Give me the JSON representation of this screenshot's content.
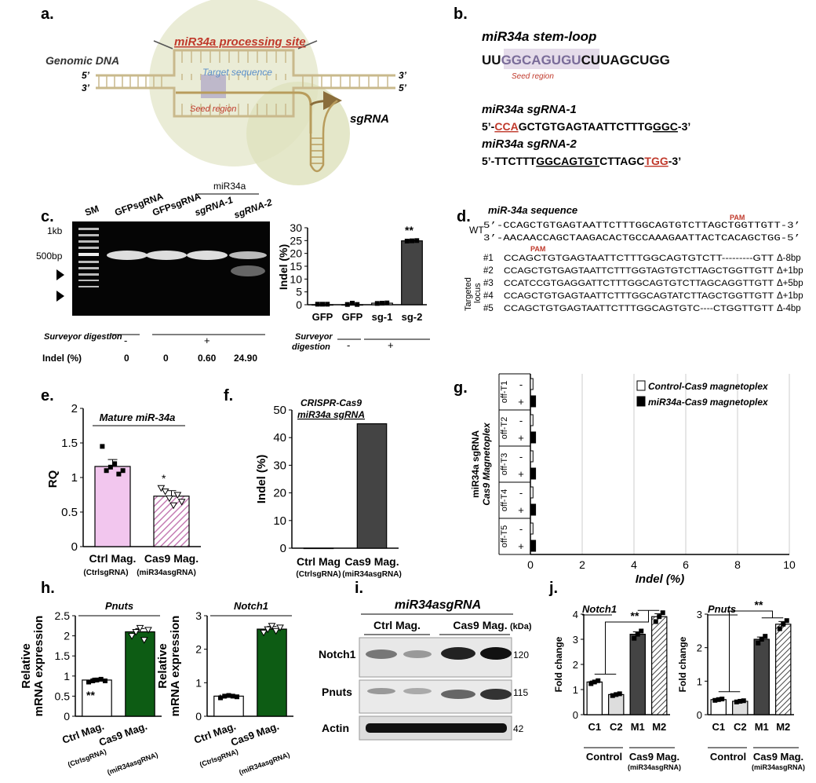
{
  "panels": {
    "a": "a.",
    "b": "b.",
    "c": "c.",
    "d": "d.",
    "e": "e.",
    "f": "f.",
    "g": "g.",
    "h": "h.",
    "i": "i.",
    "j": "j."
  },
  "panel_a": {
    "processing_site": "miR34a processing site",
    "genomic_dna": "Genomic DNA",
    "target_sequence": "Target sequence",
    "seed_region": "Seed region",
    "sgrna": "sgRNA",
    "p5_left": "5’",
    "p3_left": "3’",
    "p3_right": "3’",
    "p5_right": "5’"
  },
  "panel_b": {
    "stem_loop_title": "miR34a stem-loop",
    "seq_prefix": "UU",
    "seq_seed": "GGCAGUGU",
    "seq_suffix": "CUUAGCUGG",
    "seed_label": "Seed region",
    "sg1_title": "miR34a sgRNA-1",
    "sg1_p1": "5’-",
    "sg1_pam": "CCA",
    "sg1_mid": "GCTGTGAGTAATTCTTTG",
    "sg1_u": "GGC",
    "sg1_end": "-3’",
    "sg2_title": "miR34a sgRNA-2",
    "sg2_p1": "5’-TTCTTT",
    "sg2_u": "GGCAGTGT",
    "sg2_mid": "CTTAGC",
    "sg2_pam": "TGG",
    "sg2_end": "-3’"
  },
  "panel_c": {
    "gel_lanes": [
      "SM",
      "GFPsgRNA",
      "GFPsgRNA",
      "sgRNA-1",
      "sgRNA-2"
    ],
    "group_label": "miR34a",
    "markers": [
      "1kb",
      "500bp"
    ],
    "surveyor_label": "Surveyor digestion",
    "surveyor_values": [
      "-",
      "+"
    ],
    "indel_label": "Indel (%)",
    "indel_values": [
      "0",
      "0",
      "0.60",
      "24.90"
    ],
    "bar_surveyor_label_1": "Surveyor",
    "bar_surveyor_label_2": "digestion",
    "bar_surveyor_values": [
      "-",
      "+"
    ],
    "sig": "**"
  },
  "panel_d": {
    "title": "miR-34a sequence",
    "pam": "PAM",
    "wt": "WT",
    "wt_top": "5’-CCAGCTGTGAGTAATTCTTTGGCAGTGTCTTAGCTGGTTGTT-3’",
    "wt_bottom": "3’-AACAACCAGCTAAGACACTGCCAAAGAATTACTCACAGCTGG-5’",
    "side_label_1": "Targeted",
    "side_label_2": "locus",
    "rows": [
      {
        "id": "#1",
        "seq": "CCAGCTGTGAGTAATTCTTTGGCAGTGTCTT---------GTT",
        "delta": "Δ-8bp"
      },
      {
        "id": "#2",
        "seq": "CCAGCTGTGAGTAATTCTTTGGTAGTGTCTTAGCTGGTTGTT",
        "delta": "Δ+1bp"
      },
      {
        "id": "#3",
        "seq": "CCATCCGTGAGGATTCTTTGGCAGTGTCTTAGCAGGTTGTT",
        "delta": "Δ+5bp"
      },
      {
        "id": "#4",
        "seq": "CCAGCTGTGAGTAATTCTTTGGCAGTATCTTAGCTGGTTGTT",
        "delta": "Δ+1bp"
      },
      {
        "id": "#5",
        "seq": "CCAGCTGTGAGTAATTCTTTGGCAGTGTC----CTGGTTGTT",
        "delta": "Δ-4bp"
      }
    ]
  },
  "panel_e_labels": {
    "sub1": "(CtrlsgRNA)",
    "sub2": "(miR34asgRNA)",
    "sig": "*"
  },
  "panel_f_labels": {
    "title1": "CRISPR-Cas9",
    "title2": "miR34a sgRNA",
    "sub1": "(CtrlsgRNA)",
    "sub2": "(miR34asgRNA)"
  },
  "panel_g_labels": {
    "ylabel1": "miR34a sgRNA",
    "ylabel2": "Cas9 Magnetoplex",
    "signs": [
      "-",
      "+"
    ]
  },
  "panel_h_labels": {
    "ylabel1": "Relative",
    "ylabel2": "mRNA expression",
    "sig": "**",
    "sub1": "(CtrlsgRNA)",
    "sub2": "(miR34asgRNA)"
  },
  "panel_i": {
    "title": "miR34asgRNA",
    "groups": [
      "Ctrl Mag.",
      "Cas9 Mag."
    ],
    "kda": "(kDa)",
    "proteins": [
      {
        "name": "Notch1",
        "size": "120"
      },
      {
        "name": "Pnuts",
        "size": "115"
      },
      {
        "name": "Actin",
        "size": "42"
      }
    ]
  },
  "panel_j_labels": {
    "ylabel": "Fold change",
    "sig": "**",
    "control": "Control",
    "cas9": "Cas9 Mag.",
    "sub": "(miR34asgRNA)"
  },
  "chart_data": [
    {
      "id": "c-bar",
      "type": "bar",
      "categories": [
        "GFP",
        "GFP",
        "sg-1",
        "sg-2"
      ],
      "values": [
        0,
        0,
        0.6,
        24.9
      ],
      "ylabel": "Indel (%)",
      "ylim": [
        0,
        30
      ],
      "yticks": [
        0,
        5,
        10,
        15,
        20,
        25,
        30
      ]
    },
    {
      "id": "e",
      "type": "bar",
      "title": "Mature miR-34a",
      "categories": [
        "Ctrl Mag.",
        "Cas9 Mag."
      ],
      "values": [
        1.16,
        0.73
      ],
      "ylabel": "RQ",
      "ylim": [
        0,
        2
      ],
      "yticks": [
        0,
        0.5,
        1,
        1.5,
        2
      ]
    },
    {
      "id": "f",
      "type": "bar",
      "categories": [
        "Ctrl Mag",
        "Cas9 Mag."
      ],
      "values": [
        0,
        45
      ],
      "ylabel": "Indel (%)",
      "ylim": [
        0,
        50
      ],
      "yticks": [
        0,
        10,
        20,
        30,
        40,
        50
      ]
    },
    {
      "id": "g",
      "type": "bar",
      "orientation": "horizontal",
      "categories": [
        "off-T1",
        "off-T2",
        "off-T3",
        "off-T4",
        "off-T5"
      ],
      "series": [
        {
          "name": "Control-Cas9 magnetoplex",
          "values": [
            0.1,
            0.1,
            0.1,
            0.1,
            0.1
          ]
        },
        {
          "name": "miR34a-Cas9 magnetoplex",
          "values": [
            0.2,
            0.2,
            0.2,
            0.2,
            0.2
          ]
        }
      ],
      "xlabel": "Indel (%)",
      "xlim": [
        0,
        10
      ],
      "xticks": [
        0,
        2,
        4,
        6,
        8,
        10
      ],
      "grid": true
    },
    {
      "id": "h1",
      "type": "bar",
      "title": "Pnuts",
      "categories": [
        "Ctrl Mag.",
        "Cas9 Mag."
      ],
      "values": [
        0.9,
        2.1
      ],
      "ylim": [
        0,
        2.5
      ],
      "yticks": [
        0,
        0.5,
        1,
        1.5,
        2,
        2.5
      ]
    },
    {
      "id": "h2",
      "type": "bar",
      "title": "Notch1",
      "categories": [
        "Ctrl Mag.",
        "Cas9 Mag."
      ],
      "values": [
        0.6,
        2.6
      ],
      "ylim": [
        0,
        3
      ],
      "yticks": [
        0,
        1,
        2,
        3
      ]
    },
    {
      "id": "j1",
      "type": "bar",
      "title": "Notch1",
      "categories": [
        "C1",
        "C2",
        "M1",
        "M2"
      ],
      "values": [
        1.3,
        0.8,
        3.2,
        3.9
      ],
      "ylabel": "Fold change",
      "ylim": [
        0,
        4
      ],
      "yticks": [
        0,
        1,
        2,
        3,
        4
      ]
    },
    {
      "id": "j2",
      "type": "bar",
      "title": "Pnuts",
      "categories": [
        "C1",
        "C2",
        "M1",
        "M2"
      ],
      "values": [
        0.45,
        0.4,
        2.25,
        2.7
      ],
      "ylabel": "Fold change",
      "ylim": [
        0,
        3
      ],
      "yticks": [
        0,
        1,
        2,
        3
      ]
    }
  ]
}
